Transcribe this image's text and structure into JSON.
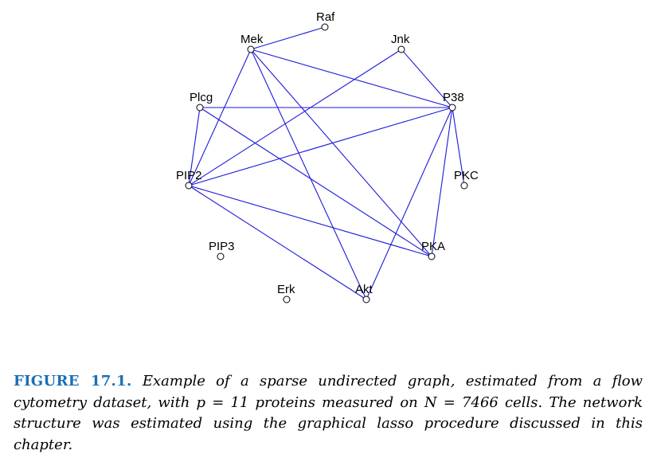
{
  "graph": {
    "edge_color": "#1a1adb",
    "nodes": [
      {
        "id": "Raf",
        "label": "Raf"
      },
      {
        "id": "Mek",
        "label": "Mek"
      },
      {
        "id": "Jnk",
        "label": "Jnk"
      },
      {
        "id": "Plcg",
        "label": "Plcg"
      },
      {
        "id": "P38",
        "label": "P38"
      },
      {
        "id": "PIP2",
        "label": "PIP2"
      },
      {
        "id": "PKC",
        "label": "PKC"
      },
      {
        "id": "PIP3",
        "label": "PIP3"
      },
      {
        "id": "PKA",
        "label": "PKA"
      },
      {
        "id": "Erk",
        "label": "Erk"
      },
      {
        "id": "Akt",
        "label": "Akt"
      }
    ],
    "edges": [
      [
        "Raf",
        "Mek"
      ],
      [
        "Mek",
        "P38"
      ],
      [
        "Mek",
        "PIP2"
      ],
      [
        "Mek",
        "PKA"
      ],
      [
        "Mek",
        "Akt"
      ],
      [
        "Jnk",
        "P38"
      ],
      [
        "Jnk",
        "PIP2"
      ],
      [
        "Plcg",
        "P38"
      ],
      [
        "Plcg",
        "PIP2"
      ],
      [
        "Plcg",
        "PKA"
      ],
      [
        "P38",
        "PIP2"
      ],
      [
        "P38",
        "PKC"
      ],
      [
        "P38",
        "PKA"
      ],
      [
        "P38",
        "Akt"
      ],
      [
        "PIP2",
        "PKA"
      ],
      [
        "PIP2",
        "Akt"
      ]
    ]
  },
  "caption": {
    "label": "FIGURE 17.1.",
    "text": "Example of a sparse undirected graph, estimated from a flow cytometry dataset, with p = 11 proteins measured on N = 7466 cells. The network structure was estimated using the graphical lasso procedure discussed in this chapter."
  }
}
